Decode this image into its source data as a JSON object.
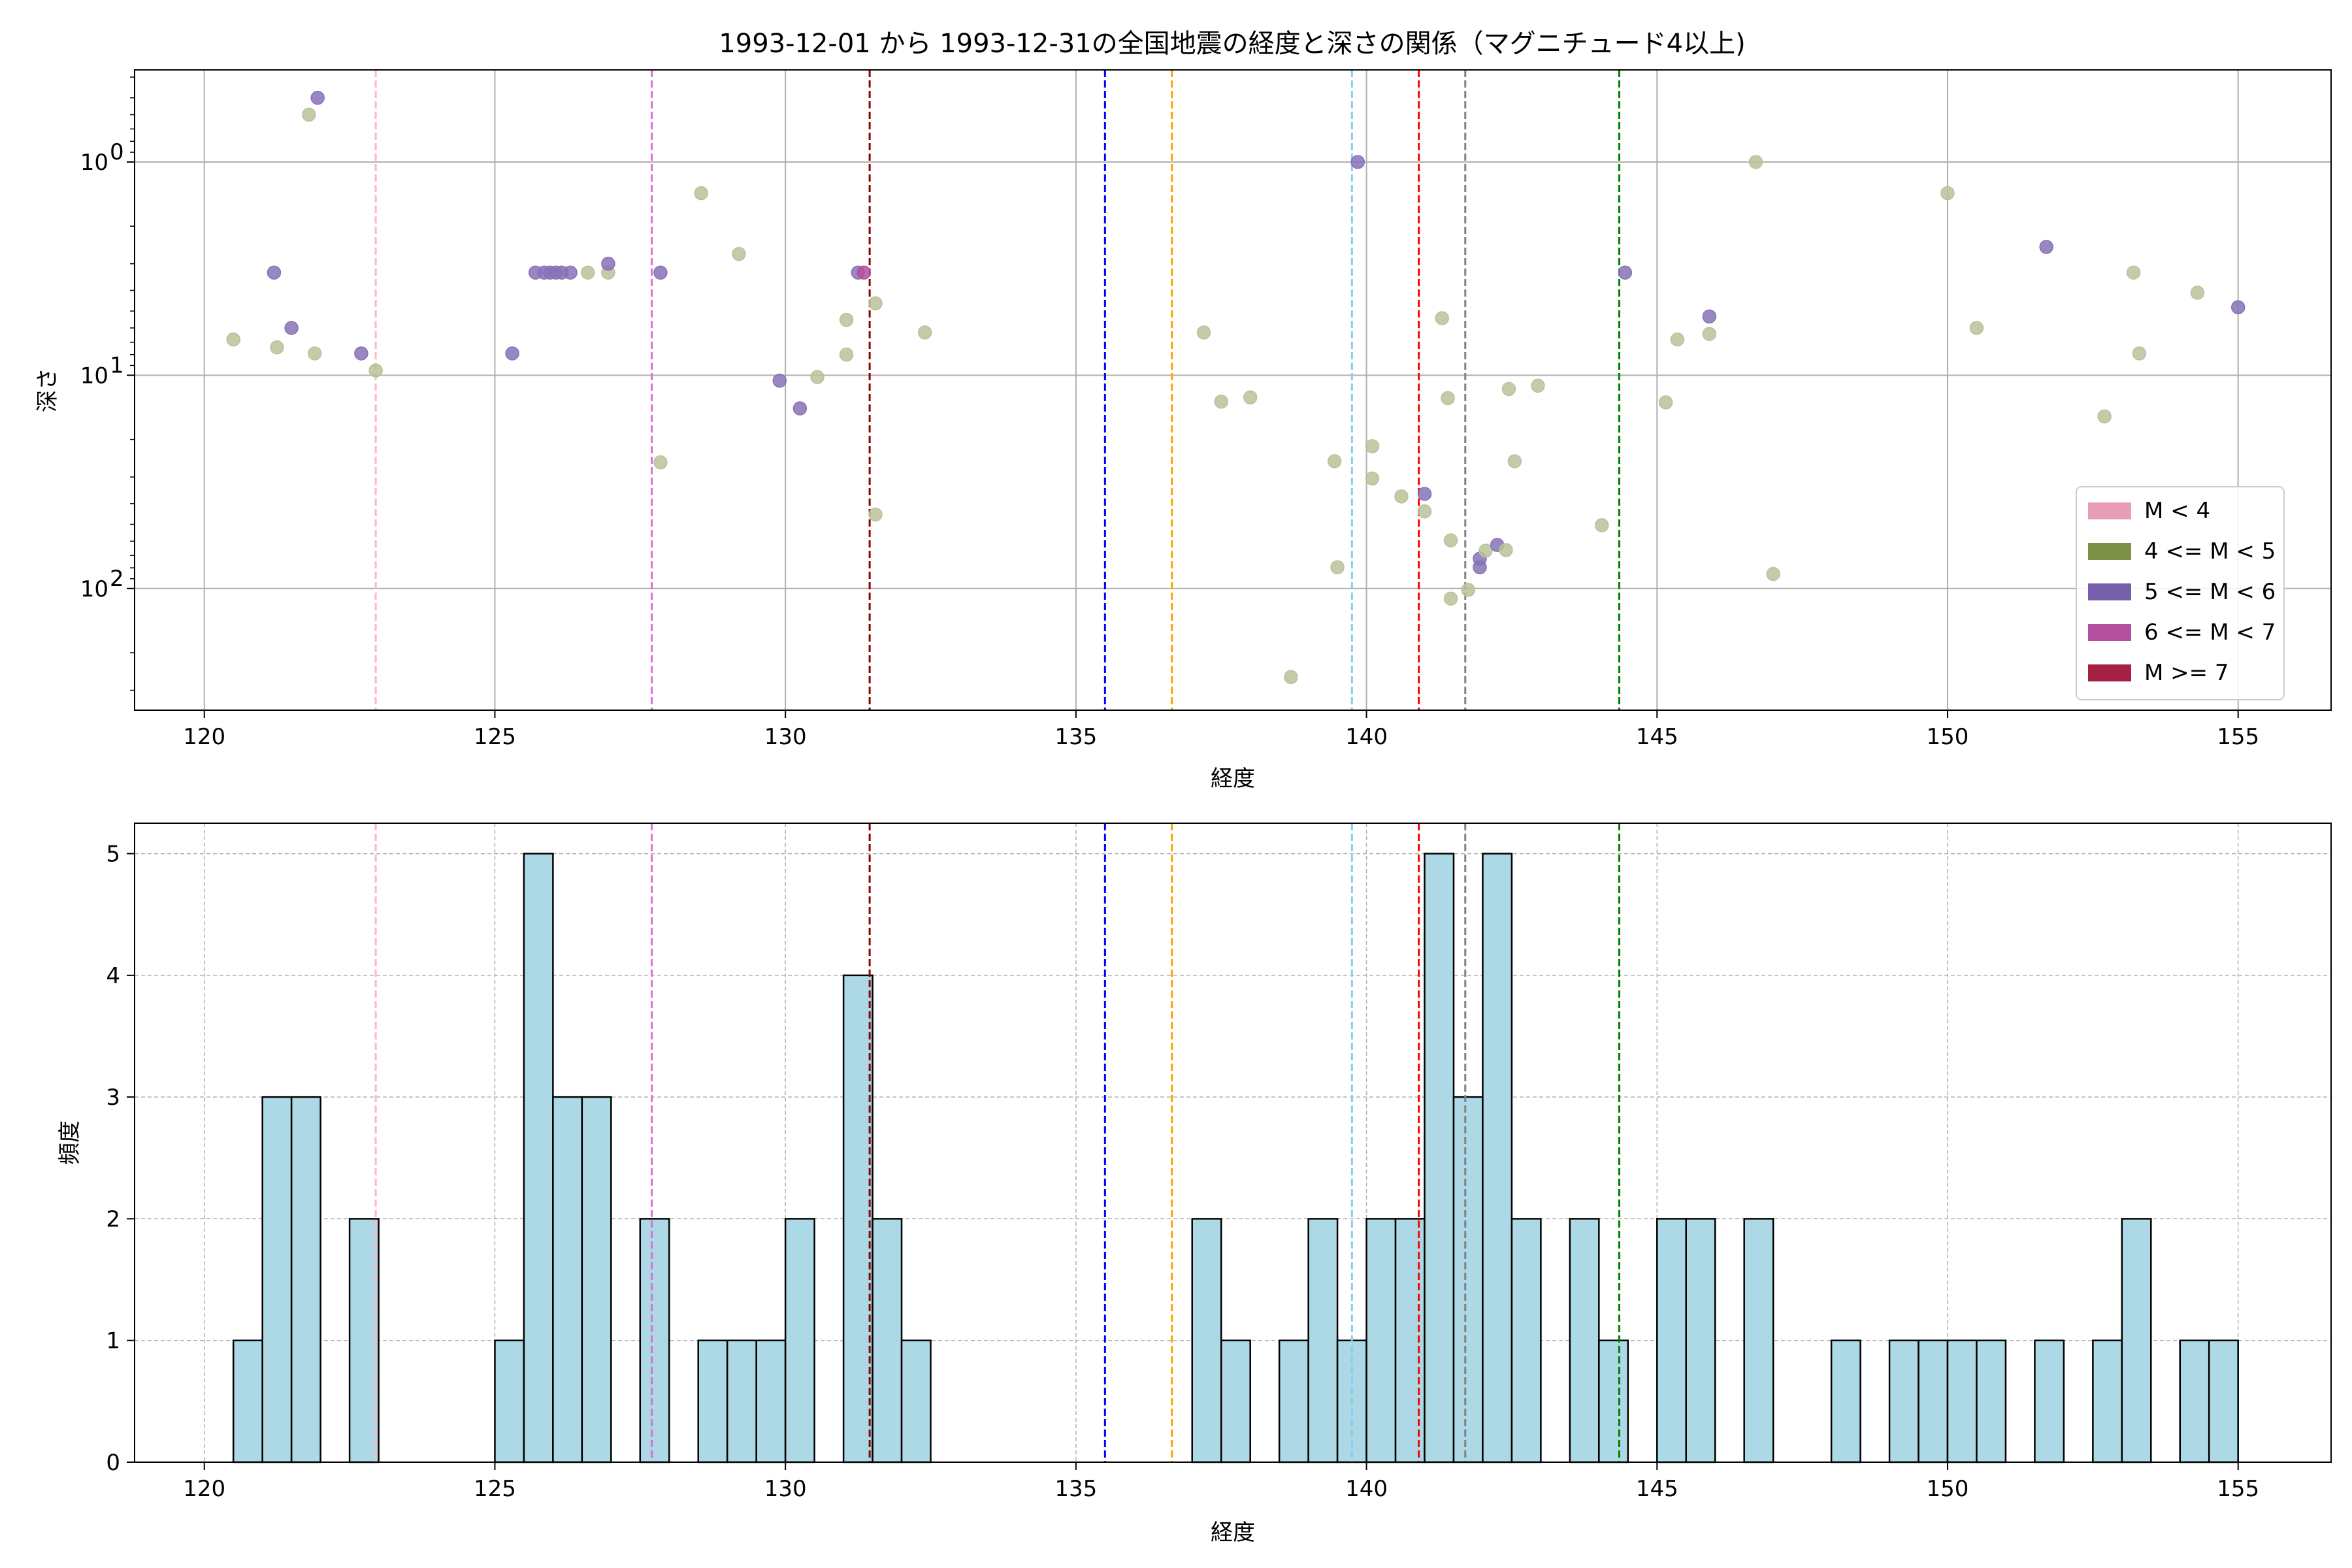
{
  "chart_data": [
    {
      "type": "scatter",
      "title": "1993-12-01 から 1993-12-31の全国地震の経度と深さの関係（マグニチュード4以上)",
      "xlabel": "経度",
      "ylabel": "深さ",
      "xlim": [
        118.8,
        156.6
      ],
      "ylim": [
        372,
        0.37
      ],
      "yscale": "log",
      "y_inverted": true,
      "x_ticks": [
        "120",
        "125",
        "130",
        "135",
        "140",
        "145",
        "150",
        "155"
      ],
      "y_ticks": [
        {
          "value": 1,
          "label": "10",
          "exp": "0"
        },
        {
          "value": 10,
          "label": "10",
          "exp": "1"
        },
        {
          "value": 100,
          "label": "10",
          "exp": "2"
        }
      ],
      "grid": true,
      "legend": {
        "position": "lower-right",
        "items": [
          {
            "label": "M < 4",
            "color": "#e89fb6"
          },
          {
            "label": "4 <= M < 5",
            "color": "#7b8f45"
          },
          {
            "label": "5 <= M < 6",
            "color": "#7660ac"
          },
          {
            "label": "6 <= M < 7",
            "color": "#b5509e"
          },
          {
            "label": "M >= 7",
            "color": "#a51f42"
          }
        ]
      },
      "point_colors": {
        "4": "#b9c29a",
        "5": "#8672b6",
        "6": "#b5509e"
      },
      "points": [
        {
          "x": 120.5,
          "y": 6.8,
          "m": 4
        },
        {
          "x": 121.2,
          "y": 3.3,
          "m": 5
        },
        {
          "x": 121.25,
          "y": 7.4,
          "m": 4
        },
        {
          "x": 121.5,
          "y": 6.0,
          "m": 5
        },
        {
          "x": 121.8,
          "y": 0.6,
          "m": 4
        },
        {
          "x": 121.9,
          "y": 7.9,
          "m": 4
        },
        {
          "x": 121.95,
          "y": 0.5,
          "m": 5
        },
        {
          "x": 122.7,
          "y": 7.9,
          "m": 5
        },
        {
          "x": 122.95,
          "y": 9.5,
          "m": 4
        },
        {
          "x": 125.3,
          "y": 7.9,
          "m": 5
        },
        {
          "x": 125.7,
          "y": 3.3,
          "m": 5
        },
        {
          "x": 125.85,
          "y": 3.3,
          "m": 5
        },
        {
          "x": 125.95,
          "y": 3.3,
          "m": 5
        },
        {
          "x": 126.05,
          "y": 3.3,
          "m": 5
        },
        {
          "x": 126.15,
          "y": 3.3,
          "m": 5
        },
        {
          "x": 126.3,
          "y": 3.3,
          "m": 5
        },
        {
          "x": 126.6,
          "y": 3.3,
          "m": 4
        },
        {
          "x": 126.95,
          "y": 3.3,
          "m": 4
        },
        {
          "x": 126.95,
          "y": 3.0,
          "m": 5
        },
        {
          "x": 127.85,
          "y": 3.3,
          "m": 5
        },
        {
          "x": 127.85,
          "y": 25.6,
          "m": 4
        },
        {
          "x": 128.55,
          "y": 1.4,
          "m": 4
        },
        {
          "x": 129.2,
          "y": 2.7,
          "m": 4
        },
        {
          "x": 129.9,
          "y": 10.6,
          "m": 5
        },
        {
          "x": 130.25,
          "y": 14.3,
          "m": 5
        },
        {
          "x": 130.55,
          "y": 10.2,
          "m": 4
        },
        {
          "x": 131.05,
          "y": 5.5,
          "m": 4
        },
        {
          "x": 131.05,
          "y": 8.0,
          "m": 4
        },
        {
          "x": 131.25,
          "y": 3.3,
          "m": 5
        },
        {
          "x": 131.35,
          "y": 3.3,
          "m": 6
        },
        {
          "x": 131.55,
          "y": 4.6,
          "m": 4
        },
        {
          "x": 131.55,
          "y": 45.0,
          "m": 4
        },
        {
          "x": 132.4,
          "y": 6.3,
          "m": 4
        },
        {
          "x": 137.2,
          "y": 6.3,
          "m": 4
        },
        {
          "x": 137.5,
          "y": 13.3,
          "m": 4
        },
        {
          "x": 138.0,
          "y": 12.7,
          "m": 4
        },
        {
          "x": 138.7,
          "y": 260,
          "m": 4
        },
        {
          "x": 139.45,
          "y": 25.3,
          "m": 4
        },
        {
          "x": 139.5,
          "y": 79.5,
          "m": 4
        },
        {
          "x": 139.85,
          "y": 1.0,
          "m": 5
        },
        {
          "x": 140.1,
          "y": 21.5,
          "m": 4
        },
        {
          "x": 140.1,
          "y": 30.5,
          "m": 4
        },
        {
          "x": 140.6,
          "y": 37.0,
          "m": 4
        },
        {
          "x": 141.0,
          "y": 36.0,
          "m": 5
        },
        {
          "x": 141.0,
          "y": 43.5,
          "m": 4
        },
        {
          "x": 141.3,
          "y": 5.4,
          "m": 4
        },
        {
          "x": 141.4,
          "y": 12.8,
          "m": 4
        },
        {
          "x": 141.45,
          "y": 59.5,
          "m": 4
        },
        {
          "x": 141.45,
          "y": 111.5,
          "m": 4
        },
        {
          "x": 141.75,
          "y": 101.5,
          "m": 4
        },
        {
          "x": 141.95,
          "y": 72.5,
          "m": 5
        },
        {
          "x": 141.95,
          "y": 79.5,
          "m": 5
        },
        {
          "x": 142.05,
          "y": 66.5,
          "m": 4
        },
        {
          "x": 142.25,
          "y": 62.5,
          "m": 5
        },
        {
          "x": 142.4,
          "y": 66.0,
          "m": 4
        },
        {
          "x": 142.45,
          "y": 11.6,
          "m": 4
        },
        {
          "x": 142.55,
          "y": 25.3,
          "m": 4
        },
        {
          "x": 142.95,
          "y": 11.2,
          "m": 4
        },
        {
          "x": 144.05,
          "y": 50.5,
          "m": 4
        },
        {
          "x": 144.45,
          "y": 3.3,
          "m": 5
        },
        {
          "x": 145.15,
          "y": 13.4,
          "m": 4
        },
        {
          "x": 145.35,
          "y": 6.8,
          "m": 4
        },
        {
          "x": 145.9,
          "y": 5.3,
          "m": 5
        },
        {
          "x": 145.9,
          "y": 6.4,
          "m": 4
        },
        {
          "x": 146.7,
          "y": 1.0,
          "m": 4
        },
        {
          "x": 147.0,
          "y": 85.5,
          "m": 4
        },
        {
          "x": 150.0,
          "y": 1.4,
          "m": 4
        },
        {
          "x": 150.5,
          "y": 6.0,
          "m": 4
        },
        {
          "x": 151.7,
          "y": 2.5,
          "m": 5
        },
        {
          "x": 152.7,
          "y": 15.6,
          "m": 4
        },
        {
          "x": 153.2,
          "y": 3.3,
          "m": 4
        },
        {
          "x": 153.3,
          "y": 7.9,
          "m": 4
        },
        {
          "x": 154.3,
          "y": 4.1,
          "m": 4
        },
        {
          "x": 155.0,
          "y": 4.8,
          "m": 5
        }
      ],
      "vlines": [
        {
          "x": 122.95,
          "color": "#ffb6c1"
        },
        {
          "x": 127.7,
          "color": "#da70d6"
        },
        {
          "x": 131.45,
          "color": "#8b0000"
        },
        {
          "x": 135.5,
          "color": "#0000ff"
        },
        {
          "x": 136.65,
          "color": "#ffa500"
        },
        {
          "x": 139.75,
          "color": "#87ceeb"
        },
        {
          "x": 140.9,
          "color": "#ff0000"
        },
        {
          "x": 141.7,
          "color": "#808080"
        },
        {
          "x": 144.35,
          "color": "#008000"
        }
      ]
    },
    {
      "type": "bar",
      "xlabel": "経度",
      "ylabel": "頻度",
      "xlim": [
        118.8,
        156.6
      ],
      "ylim": [
        0,
        5.25
      ],
      "x_ticks": [
        "120",
        "125",
        "130",
        "135",
        "140",
        "145",
        "150",
        "155"
      ],
      "y_ticks": [
        "0",
        "1",
        "2",
        "3",
        "4",
        "5"
      ],
      "grid": true,
      "bar_color": "#add8e6",
      "edge_color": "#000000",
      "bin_start": 120.5,
      "bin_width": 0.5,
      "counts": [
        1,
        3,
        3,
        0,
        2,
        0,
        0,
        0,
        0,
        1,
        5,
        3,
        3,
        0,
        2,
        0,
        1,
        1,
        1,
        2,
        0,
        4,
        2,
        1,
        0,
        0,
        0,
        0,
        0,
        0,
        0,
        0,
        0,
        2,
        1,
        0,
        1,
        2,
        1,
        2,
        2,
        5,
        3,
        5,
        2,
        0,
        2,
        1,
        0,
        2,
        2,
        0,
        2,
        0,
        0,
        1,
        0,
        1,
        1,
        1,
        1,
        0,
        1,
        0,
        1,
        2,
        0,
        1,
        1
      ],
      "vlines": [
        {
          "x": 122.95,
          "color": "#ffb6c1"
        },
        {
          "x": 127.7,
          "color": "#da70d6"
        },
        {
          "x": 131.45,
          "color": "#8b0000"
        },
        {
          "x": 135.5,
          "color": "#0000ff"
        },
        {
          "x": 136.65,
          "color": "#ffa500"
        },
        {
          "x": 139.75,
          "color": "#87ceeb"
        },
        {
          "x": 140.9,
          "color": "#ff0000"
        },
        {
          "x": 141.7,
          "color": "#808080"
        },
        {
          "x": 144.35,
          "color": "#008000"
        }
      ]
    }
  ]
}
